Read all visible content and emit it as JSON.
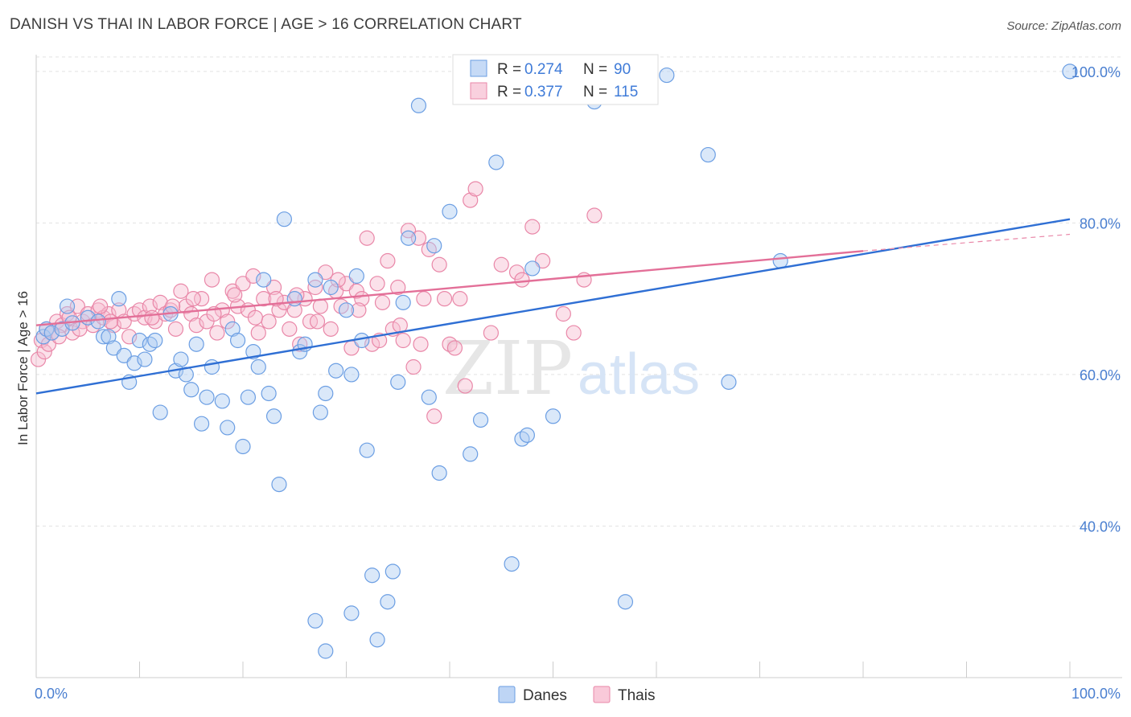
{
  "title": "DANISH VS THAI IN LABOR FORCE | AGE > 16 CORRELATION CHART",
  "source": "Source: ZipAtlas.com",
  "watermark": {
    "zip": "ZIP",
    "atlas": "atlas"
  },
  "chart_data": {
    "type": "scatter",
    "ylabel": "In Labor Force | Age > 16",
    "xlim": [
      0,
      100
    ],
    "ylim": [
      20,
      102
    ],
    "x_tick_labels": [
      "0.0%",
      "100.0%"
    ],
    "y_ticks": [
      {
        "value": 40,
        "label": "40.0%"
      },
      {
        "value": 60,
        "label": "60.0%"
      },
      {
        "value": 80,
        "label": "80.0%"
      },
      {
        "value": 100,
        "label": "100.0%"
      }
    ],
    "grid": true,
    "legend_position": "top-center",
    "series": [
      {
        "name": "Danes",
        "color": "#6b9ee3",
        "fill": "#aecbf2",
        "R": "0.274",
        "N": "90",
        "trend": {
          "x0": 0,
          "y0": 57.5,
          "x1": 100,
          "y1": 80.5
        },
        "points": [
          [
            0.7,
            65
          ],
          [
            1.0,
            66
          ],
          [
            1.5,
            65.5
          ],
          [
            2.5,
            66
          ],
          [
            3,
            69
          ],
          [
            3.5,
            66.8
          ],
          [
            5,
            67.5
          ],
          [
            6,
            67
          ],
          [
            6.5,
            65
          ],
          [
            7,
            65
          ],
          [
            7.5,
            63.5
          ],
          [
            8,
            70
          ],
          [
            8.5,
            62.5
          ],
          [
            9,
            59
          ],
          [
            9.5,
            61.5
          ],
          [
            10,
            64.5
          ],
          [
            10.5,
            62
          ],
          [
            11,
            64
          ],
          [
            11.5,
            64.5
          ],
          [
            12,
            55
          ],
          [
            13,
            68
          ],
          [
            13.5,
            60.5
          ],
          [
            14,
            62
          ],
          [
            14.5,
            60
          ],
          [
            15,
            58
          ],
          [
            15.5,
            64
          ],
          [
            16,
            53.5
          ],
          [
            16.5,
            57
          ],
          [
            17,
            61
          ],
          [
            18,
            56.5
          ],
          [
            18.5,
            53
          ],
          [
            19,
            66
          ],
          [
            19.5,
            64.5
          ],
          [
            20,
            50.5
          ],
          [
            20.5,
            57
          ],
          [
            21,
            63
          ],
          [
            21.5,
            61
          ],
          [
            22,
            72.5
          ],
          [
            22.5,
            57.5
          ],
          [
            23,
            54.5
          ],
          [
            23.5,
            45.5
          ],
          [
            24,
            80.5
          ],
          [
            25,
            70
          ],
          [
            25.5,
            63
          ],
          [
            26,
            64
          ],
          [
            27,
            72.5
          ],
          [
            27.5,
            55
          ],
          [
            28,
            57.5
          ],
          [
            28.5,
            71.5
          ],
          [
            29,
            60.5
          ],
          [
            30,
            68.5
          ],
          [
            30.5,
            60
          ],
          [
            31,
            73
          ],
          [
            31.5,
            64.5
          ],
          [
            32,
            50
          ],
          [
            32.5,
            33.5
          ],
          [
            34,
            30
          ],
          [
            34.5,
            34
          ],
          [
            35,
            59
          ],
          [
            35.5,
            69.5
          ],
          [
            36,
            78
          ],
          [
            37,
            95.5
          ],
          [
            38,
            57
          ],
          [
            38.5,
            77
          ],
          [
            39,
            47
          ],
          [
            40,
            81.5
          ],
          [
            42,
            49.5
          ],
          [
            43,
            54
          ],
          [
            44.5,
            88
          ],
          [
            46,
            35
          ],
          [
            47,
            51.5
          ],
          [
            47.5,
            52
          ],
          [
            48,
            74
          ],
          [
            50,
            54.5
          ],
          [
            51,
            100
          ],
          [
            54,
            96
          ],
          [
            54.5,
            99
          ],
          [
            57,
            30
          ],
          [
            59,
            100
          ],
          [
            61,
            99.5
          ],
          [
            65,
            89
          ],
          [
            67,
            59
          ],
          [
            72,
            75
          ],
          [
            100,
            100
          ],
          [
            27,
            27.5
          ],
          [
            28,
            23.5
          ],
          [
            30.5,
            28.5
          ],
          [
            33,
            25
          ]
        ]
      },
      {
        "name": "Thais",
        "color": "#e987a8",
        "fill": "#f7bcd0",
        "R": "0.377",
        "N": "115",
        "trend": {
          "x0": 0,
          "y0": 66.5,
          "x1": 80,
          "y1": 76.3
        },
        "trend_dashed": {
          "x0": 80,
          "y0": 76.3,
          "x1": 100,
          "y1": 78.5
        },
        "points": [
          [
            0.2,
            62
          ],
          [
            0.5,
            64.5
          ],
          [
            1,
            66
          ],
          [
            1.5,
            65.5
          ],
          [
            2,
            67
          ],
          [
            2.5,
            66.5
          ],
          [
            3,
            68
          ],
          [
            3.5,
            65.5
          ],
          [
            4,
            69
          ],
          [
            4.5,
            67
          ],
          [
            5,
            68
          ],
          [
            5.5,
            66.5
          ],
          [
            6,
            68.5
          ],
          [
            6.5,
            67.5
          ],
          [
            7,
            68
          ],
          [
            7.5,
            66.5
          ],
          [
            8,
            68.5
          ],
          [
            8.5,
            67
          ],
          [
            9,
            65
          ],
          [
            9.5,
            68
          ],
          [
            10,
            68.5
          ],
          [
            10.5,
            67.5
          ],
          [
            11,
            69
          ],
          [
            11.5,
            67
          ],
          [
            12,
            69.5
          ],
          [
            12.5,
            68
          ],
          [
            13,
            68.5
          ],
          [
            13.5,
            66
          ],
          [
            14,
            71
          ],
          [
            14.5,
            69
          ],
          [
            15,
            68
          ],
          [
            15.5,
            66.5
          ],
          [
            16,
            70
          ],
          [
            16.5,
            67
          ],
          [
            17,
            72.5
          ],
          [
            17.5,
            65.5
          ],
          [
            18,
            68.5
          ],
          [
            18.5,
            67
          ],
          [
            19,
            71
          ],
          [
            19.5,
            69
          ],
          [
            20,
            72
          ],
          [
            20.5,
            68.5
          ],
          [
            21,
            73
          ],
          [
            21.5,
            65.5
          ],
          [
            22,
            70
          ],
          [
            22.5,
            67
          ],
          [
            23,
            71.5
          ],
          [
            23.5,
            68.5
          ],
          [
            24,
            69.5
          ],
          [
            24.5,
            66
          ],
          [
            25,
            68.5
          ],
          [
            25.5,
            64
          ],
          [
            26,
            70
          ],
          [
            26.5,
            67
          ],
          [
            27,
            71.5
          ],
          [
            27.5,
            69
          ],
          [
            28,
            73.5
          ],
          [
            28.5,
            66
          ],
          [
            29,
            71
          ],
          [
            29.5,
            69
          ],
          [
            30,
            72
          ],
          [
            30.5,
            63.5
          ],
          [
            31,
            71
          ],
          [
            31.5,
            70
          ],
          [
            32,
            78
          ],
          [
            32.5,
            64
          ],
          [
            33,
            72
          ],
          [
            33.5,
            69.5
          ],
          [
            34,
            75
          ],
          [
            34.5,
            66
          ],
          [
            35,
            71.5
          ],
          [
            35.5,
            64.5
          ],
          [
            36,
            79
          ],
          [
            36.5,
            61
          ],
          [
            37,
            78
          ],
          [
            37.5,
            70
          ],
          [
            38,
            76.5
          ],
          [
            38.5,
            54.5
          ],
          [
            39,
            74.5
          ],
          [
            39.5,
            70
          ],
          [
            40,
            64
          ],
          [
            40.5,
            63.5
          ],
          [
            41,
            70
          ],
          [
            41.5,
            58.5
          ],
          [
            42,
            83
          ],
          [
            42.5,
            84.5
          ],
          [
            44,
            65.5
          ],
          [
            45,
            74.5
          ],
          [
            46.5,
            73.5
          ],
          [
            47,
            72.5
          ],
          [
            48,
            79.5
          ],
          [
            49,
            75
          ],
          [
            51,
            68
          ],
          [
            52,
            65.5
          ],
          [
            53,
            72.5
          ],
          [
            54,
            81
          ],
          [
            0.8,
            63
          ],
          [
            1.2,
            64
          ],
          [
            2.2,
            65
          ],
          [
            3.2,
            67.5
          ],
          [
            4.2,
            66
          ],
          [
            6.2,
            69
          ],
          [
            7.2,
            67
          ],
          [
            11.2,
            67.5
          ],
          [
            13.2,
            69
          ],
          [
            15.2,
            70
          ],
          [
            17.2,
            68
          ],
          [
            19.2,
            70.5
          ],
          [
            21.2,
            67.5
          ],
          [
            23.2,
            70
          ],
          [
            25.2,
            70.5
          ],
          [
            27.2,
            67
          ],
          [
            29.2,
            72.5
          ],
          [
            31.2,
            68.5
          ],
          [
            33.2,
            64.5
          ],
          [
            35.2,
            66.5
          ],
          [
            37.2,
            64
          ]
        ]
      }
    ]
  }
}
